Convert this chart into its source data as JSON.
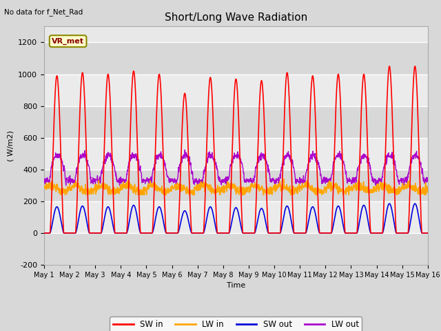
{
  "title": "Short/Long Wave Radiation",
  "xlabel": "Time",
  "ylabel": "( W/m2)",
  "ylim": [
    -200,
    1300
  ],
  "yticks": [
    -200,
    0,
    200,
    400,
    600,
    800,
    1000,
    1200
  ],
  "background_color": "#d8d8d8",
  "plot_bg_color": "#d8d8d8",
  "note_text": "No data for f_Net_Rad",
  "station_label": "VR_met",
  "legend_entries": [
    "SW in",
    "LW in",
    "SW out",
    "LW out"
  ],
  "legend_colors": [
    "#ff0000",
    "#ffa500",
    "#0000dd",
    "#aa00cc"
  ],
  "num_days": 15,
  "sw_in_peaks": [
    990,
    1010,
    1000,
    1020,
    1000,
    880,
    980,
    970,
    960,
    1010,
    990,
    1000,
    1000,
    1050,
    1050
  ],
  "sw_out_peaks": [
    165,
    170,
    165,
    175,
    165,
    140,
    165,
    160,
    155,
    170,
    165,
    170,
    175,
    185,
    185
  ],
  "lw_in_base": 280,
  "lw_out_base": 330,
  "lw_out_peak": 490
}
